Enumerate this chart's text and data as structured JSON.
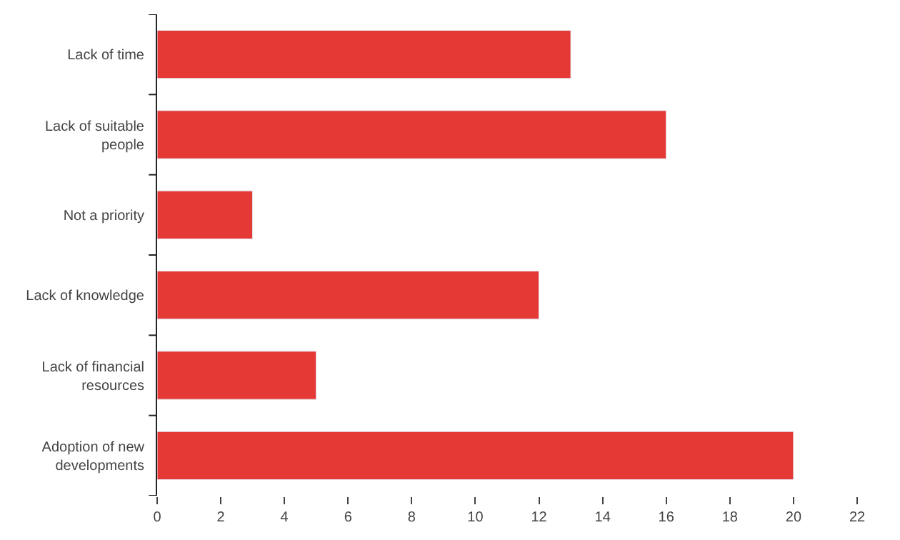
{
  "chart_data": {
    "type": "bar",
    "orientation": "horizontal",
    "categories": [
      "Lack of time",
      "Lack of suitable people",
      "Not a priority",
      "Lack of knowledge",
      "Lack of financial resources",
      "Adoption of new developments"
    ],
    "values": [
      13,
      16,
      3,
      12,
      5,
      20
    ],
    "color": "#e53935",
    "xlim": [
      0,
      22
    ],
    "xticks": [
      0,
      2,
      4,
      6,
      8,
      10,
      12,
      14,
      16,
      18,
      20,
      22
    ]
  }
}
